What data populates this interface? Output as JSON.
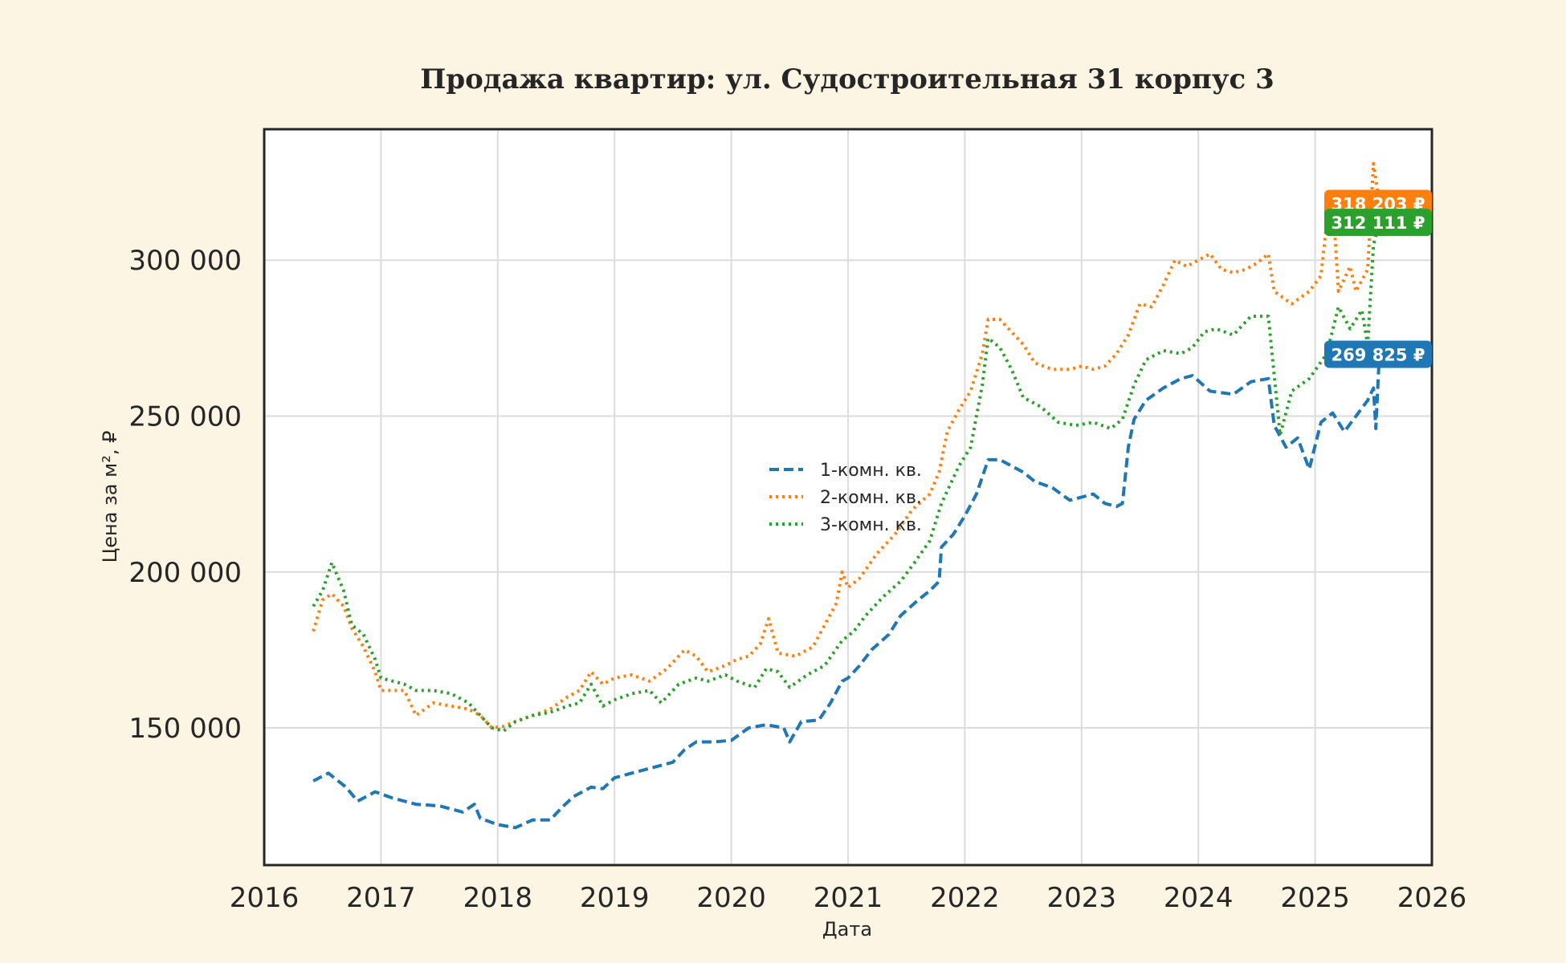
{
  "chart_data": {
    "type": "line",
    "title": "Продажа квартир: ул. Судостроительная 31 корпус 3",
    "xlabel": "Дата",
    "ylabel": "Цена за м², ₽",
    "xlim": [
      2016,
      2026
    ],
    "ylim": [
      106000,
      342000
    ],
    "x_ticks": [
      2016,
      2017,
      2018,
      2019,
      2020,
      2021,
      2022,
      2023,
      2024,
      2025,
      2026
    ],
    "x_tick_labels": [
      "2016",
      "2017",
      "2018",
      "2019",
      "2020",
      "2021",
      "2022",
      "2023",
      "2024",
      "2025",
      "2026"
    ],
    "y_ticks": [
      150000,
      200000,
      250000,
      300000
    ],
    "y_tick_labels": [
      "150 000",
      "200 000",
      "250 000",
      "300 000"
    ],
    "grid": true,
    "legend_position": "center",
    "series": [
      {
        "name": "1-комн. кв.",
        "color": "#1f77b4",
        "style": "dashed",
        "last_value_label": "269 825 ₽",
        "points": [
          [
            2016.42,
            133000
          ],
          [
            2016.55,
            135500
          ],
          [
            2016.7,
            131000
          ],
          [
            2016.8,
            126500
          ],
          [
            2016.95,
            129500
          ],
          [
            2017.1,
            127500
          ],
          [
            2017.3,
            125500
          ],
          [
            2017.5,
            125000
          ],
          [
            2017.7,
            123000
          ],
          [
            2017.8,
            125500
          ],
          [
            2017.85,
            121000
          ],
          [
            2018.0,
            119000
          ],
          [
            2018.15,
            118000
          ],
          [
            2018.3,
            120500
          ],
          [
            2018.45,
            120500
          ],
          [
            2018.55,
            124500
          ],
          [
            2018.65,
            128000
          ],
          [
            2018.8,
            131000
          ],
          [
            2018.9,
            130500
          ],
          [
            2019.0,
            134000
          ],
          [
            2019.2,
            136000
          ],
          [
            2019.4,
            138000
          ],
          [
            2019.5,
            139000
          ],
          [
            2019.6,
            143000
          ],
          [
            2019.7,
            145500
          ],
          [
            2019.85,
            145500
          ],
          [
            2020.0,
            146000
          ],
          [
            2020.15,
            150000
          ],
          [
            2020.3,
            151000
          ],
          [
            2020.45,
            150000
          ],
          [
            2020.5,
            145500
          ],
          [
            2020.6,
            152000
          ],
          [
            2020.75,
            152500
          ],
          [
            2020.85,
            158000
          ],
          [
            2020.95,
            165000
          ],
          [
            2021.0,
            166000
          ],
          [
            2021.1,
            170000
          ],
          [
            2021.2,
            175000
          ],
          [
            2021.35,
            180000
          ],
          [
            2021.45,
            186000
          ],
          [
            2021.6,
            191000
          ],
          [
            2021.7,
            194000
          ],
          [
            2021.78,
            197000
          ],
          [
            2021.8,
            208000
          ],
          [
            2021.9,
            212000
          ],
          [
            2022.0,
            218000
          ],
          [
            2022.1,
            225000
          ],
          [
            2022.2,
            236000
          ],
          [
            2022.3,
            236000
          ],
          [
            2022.4,
            234000
          ],
          [
            2022.5,
            232000
          ],
          [
            2022.6,
            229000
          ],
          [
            2022.75,
            227000
          ],
          [
            2022.9,
            223000
          ],
          [
            2023.0,
            224000
          ],
          [
            2023.1,
            225000
          ],
          [
            2023.2,
            222000
          ],
          [
            2023.3,
            221000
          ],
          [
            2023.35,
            222000
          ],
          [
            2023.4,
            240000
          ],
          [
            2023.45,
            249000
          ],
          [
            2023.55,
            255000
          ],
          [
            2023.7,
            259000
          ],
          [
            2023.85,
            262000
          ],
          [
            2023.95,
            263000
          ],
          [
            2024.1,
            258000
          ],
          [
            2024.3,
            257000
          ],
          [
            2024.45,
            261000
          ],
          [
            2024.6,
            262000
          ],
          [
            2024.65,
            247000
          ],
          [
            2024.75,
            240000
          ],
          [
            2024.85,
            243000
          ],
          [
            2024.95,
            233000
          ],
          [
            2025.05,
            248000
          ],
          [
            2025.15,
            251000
          ],
          [
            2025.25,
            245000
          ],
          [
            2025.35,
            250000
          ],
          [
            2025.45,
            255000
          ],
          [
            2025.5,
            259000
          ],
          [
            2025.52,
            246000
          ],
          [
            2025.55,
            269825
          ]
        ]
      },
      {
        "name": "2-комн. кв.",
        "color": "#ff7f0e",
        "style": "dotted",
        "last_value_label": "318 203 ₽",
        "points": [
          [
            2016.42,
            181000
          ],
          [
            2016.5,
            191000
          ],
          [
            2016.58,
            193000
          ],
          [
            2016.68,
            189000
          ],
          [
            2016.75,
            182000
          ],
          [
            2016.85,
            176000
          ],
          [
            2016.95,
            168000
          ],
          [
            2017.0,
            162000
          ],
          [
            2017.2,
            162000
          ],
          [
            2017.3,
            154000
          ],
          [
            2017.45,
            158000
          ],
          [
            2017.6,
            157000
          ],
          [
            2017.75,
            156000
          ],
          [
            2017.85,
            154000
          ],
          [
            2017.95,
            150000
          ],
          [
            2018.05,
            150500
          ],
          [
            2018.15,
            152000
          ],
          [
            2018.3,
            154000
          ],
          [
            2018.45,
            156000
          ],
          [
            2018.6,
            160000
          ],
          [
            2018.7,
            162000
          ],
          [
            2018.8,
            168000
          ],
          [
            2018.9,
            164000
          ],
          [
            2019.0,
            166000
          ],
          [
            2019.15,
            167000
          ],
          [
            2019.3,
            165000
          ],
          [
            2019.45,
            169000
          ],
          [
            2019.6,
            175000
          ],
          [
            2019.7,
            173000
          ],
          [
            2019.8,
            168000
          ],
          [
            2019.95,
            170000
          ],
          [
            2020.05,
            172000
          ],
          [
            2020.15,
            173000
          ],
          [
            2020.25,
            177000
          ],
          [
            2020.32,
            185000
          ],
          [
            2020.4,
            174000
          ],
          [
            2020.55,
            173000
          ],
          [
            2020.7,
            176000
          ],
          [
            2020.8,
            183000
          ],
          [
            2020.9,
            190000
          ],
          [
            2020.95,
            200000
          ],
          [
            2021.0,
            195000
          ],
          [
            2021.1,
            198000
          ],
          [
            2021.25,
            206000
          ],
          [
            2021.4,
            212000
          ],
          [
            2021.55,
            220000
          ],
          [
            2021.7,
            225000
          ],
          [
            2021.78,
            232000
          ],
          [
            2021.85,
            245000
          ],
          [
            2021.95,
            252000
          ],
          [
            2022.05,
            258000
          ],
          [
            2022.15,
            270000
          ],
          [
            2022.2,
            281000
          ],
          [
            2022.3,
            281000
          ],
          [
            2022.4,
            277000
          ],
          [
            2022.5,
            273000
          ],
          [
            2022.6,
            267000
          ],
          [
            2022.75,
            265000
          ],
          [
            2022.9,
            265000
          ],
          [
            2023.0,
            266000
          ],
          [
            2023.1,
            265000
          ],
          [
            2023.2,
            266000
          ],
          [
            2023.3,
            270000
          ],
          [
            2023.4,
            276000
          ],
          [
            2023.5,
            286000
          ],
          [
            2023.6,
            285000
          ],
          [
            2023.7,
            292000
          ],
          [
            2023.8,
            300000
          ],
          [
            2023.9,
            298000
          ],
          [
            2024.0,
            300000
          ],
          [
            2024.1,
            302000
          ],
          [
            2024.2,
            297000
          ],
          [
            2024.3,
            296000
          ],
          [
            2024.4,
            297000
          ],
          [
            2024.5,
            299000
          ],
          [
            2024.6,
            302000
          ],
          [
            2024.65,
            290000
          ],
          [
            2024.8,
            286000
          ],
          [
            2024.95,
            290000
          ],
          [
            2025.05,
            295000
          ],
          [
            2025.1,
            312000
          ],
          [
            2025.15,
            320000
          ],
          [
            2025.2,
            290000
          ],
          [
            2025.3,
            298000
          ],
          [
            2025.35,
            290000
          ],
          [
            2025.45,
            297000
          ],
          [
            2025.5,
            331000
          ],
          [
            2025.55,
            318203
          ]
        ]
      },
      {
        "name": "3-комн. кв.",
        "color": "#2ca02c",
        "style": "dotted",
        "last_value_label": "312 111 ₽",
        "points": [
          [
            2016.42,
            189000
          ],
          [
            2016.5,
            194000
          ],
          [
            2016.58,
            203000
          ],
          [
            2016.68,
            194000
          ],
          [
            2016.75,
            183000
          ],
          [
            2016.85,
            180000
          ],
          [
            2016.95,
            172000
          ],
          [
            2017.0,
            166000
          ],
          [
            2017.2,
            164000
          ],
          [
            2017.3,
            162000
          ],
          [
            2017.45,
            162000
          ],
          [
            2017.6,
            161000
          ],
          [
            2017.75,
            158000
          ],
          [
            2017.85,
            154000
          ],
          [
            2017.95,
            150000
          ],
          [
            2018.05,
            149000
          ],
          [
            2018.15,
            152000
          ],
          [
            2018.3,
            154000
          ],
          [
            2018.45,
            155000
          ],
          [
            2018.6,
            157000
          ],
          [
            2018.7,
            158000
          ],
          [
            2018.8,
            164000
          ],
          [
            2018.9,
            157000
          ],
          [
            2019.0,
            159000
          ],
          [
            2019.15,
            161000
          ],
          [
            2019.3,
            162000
          ],
          [
            2019.4,
            158000
          ],
          [
            2019.55,
            164000
          ],
          [
            2019.7,
            166000
          ],
          [
            2019.8,
            165000
          ],
          [
            2019.95,
            167000
          ],
          [
            2020.05,
            165000
          ],
          [
            2020.2,
            163000
          ],
          [
            2020.3,
            169000
          ],
          [
            2020.4,
            168000
          ],
          [
            2020.5,
            163000
          ],
          [
            2020.65,
            167000
          ],
          [
            2020.8,
            170000
          ],
          [
            2020.95,
            178000
          ],
          [
            2021.05,
            181000
          ],
          [
            2021.15,
            186000
          ],
          [
            2021.3,
            192000
          ],
          [
            2021.45,
            197000
          ],
          [
            2021.55,
            202000
          ],
          [
            2021.7,
            210000
          ],
          [
            2021.8,
            222000
          ],
          [
            2021.95,
            234000
          ],
          [
            2022.05,
            240000
          ],
          [
            2022.15,
            260000
          ],
          [
            2022.2,
            275000
          ],
          [
            2022.3,
            272000
          ],
          [
            2022.4,
            265000
          ],
          [
            2022.5,
            256000
          ],
          [
            2022.65,
            253000
          ],
          [
            2022.8,
            248000
          ],
          [
            2022.95,
            247000
          ],
          [
            2023.1,
            248000
          ],
          [
            2023.25,
            246000
          ],
          [
            2023.35,
            249000
          ],
          [
            2023.45,
            260000
          ],
          [
            2023.55,
            268000
          ],
          [
            2023.7,
            271000
          ],
          [
            2023.85,
            270000
          ],
          [
            2023.95,
            272000
          ],
          [
            2024.05,
            277000
          ],
          [
            2024.15,
            278000
          ],
          [
            2024.3,
            276000
          ],
          [
            2024.45,
            282000
          ],
          [
            2024.6,
            282000
          ],
          [
            2024.7,
            244000
          ],
          [
            2024.8,
            258000
          ],
          [
            2024.95,
            262000
          ],
          [
            2025.1,
            270000
          ],
          [
            2025.2,
            285000
          ],
          [
            2025.3,
            278000
          ],
          [
            2025.4,
            284000
          ],
          [
            2025.45,
            273000
          ],
          [
            2025.5,
            305000
          ],
          [
            2025.55,
            312111
          ]
        ]
      }
    ]
  }
}
